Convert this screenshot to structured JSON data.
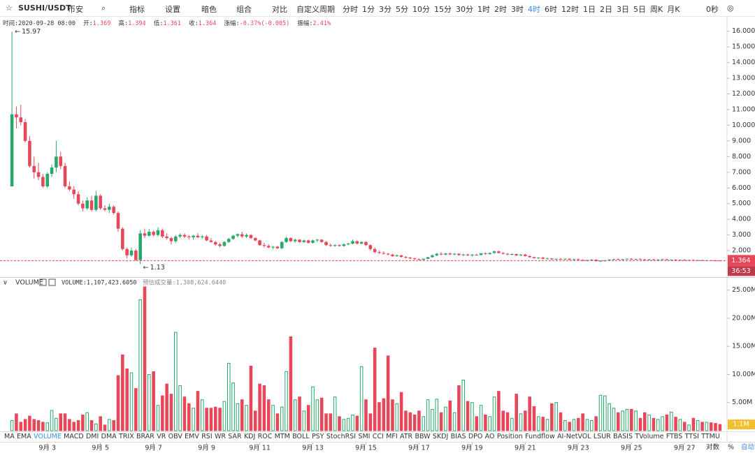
{
  "toolbar": {
    "symbol": "SUSHI/USDT",
    "exchange": "币安",
    "tools": [
      "指标",
      "设置",
      "暗色",
      "组合",
      "对比"
    ],
    "custom_period": "自定义周期",
    "periods": [
      "分时",
      "1分",
      "3分",
      "5分",
      "10分",
      "15分",
      "30分",
      "1时",
      "2时",
      "3时",
      "4时",
      "6时",
      "12时",
      "1日",
      "2日",
      "3日",
      "5日",
      "周K",
      "月K"
    ],
    "active_period_index": 10,
    "timer": "0秒"
  },
  "indicator_bar": {
    "items": [
      "MA",
      "EMA",
      "VOLUME",
      "MACD",
      "DMI",
      "DMA",
      "TRIX",
      "BRAR",
      "VR",
      "OBV",
      "EMV",
      "RSI",
      "WR",
      "SAR",
      "KDJ",
      "ROC",
      "MTM",
      "BOLL",
      "PSY",
      "StochRSI",
      "SMI",
      "CCI",
      "MFI",
      "ATR",
      "BBW",
      "SKDJ",
      "BIAS",
      "DPO",
      "AO",
      "Position",
      "Fundflow",
      "AI-NetVOL",
      "LSUR",
      "BASIS",
      "TVolume",
      "FTBS",
      "TTSI",
      "TTMU"
    ],
    "active_index": 2
  },
  "bottom_controls": {
    "log": "对数",
    "percent": "%",
    "auto": "自动"
  },
  "chart_data": {
    "type": "candlestick",
    "info": {
      "time_label": "时间:",
      "time": "2020-09-28 08:00",
      "open_label": "开:",
      "high_label": "高:",
      "low_label": "低:",
      "close_label": "收:",
      "change_label": "涨幅:",
      "change": "-0.37%(-0.005)",
      "amplitude_label": "振幅:",
      "amplitude": "2.41%"
    },
    "up_color": "#26a86a",
    "down_color": "#e8475a",
    "candles": [
      [
        6.1,
        15.97,
        6.1,
        10.7
      ],
      [
        10.7,
        11.2,
        9.8,
        10.5
      ],
      [
        10.5,
        11.3,
        10.0,
        10.2
      ],
      [
        10.2,
        10.4,
        8.9,
        9.0
      ],
      [
        9.0,
        9.3,
        7.3,
        7.4
      ],
      [
        7.4,
        8.0,
        6.6,
        7.0
      ],
      [
        7.0,
        7.6,
        6.5,
        6.7
      ],
      [
        6.7,
        6.9,
        6.0,
        6.1
      ],
      [
        6.1,
        7.0,
        6.0,
        6.9
      ],
      [
        6.9,
        7.5,
        6.7,
        7.3
      ],
      [
        7.3,
        9.0,
        7.0,
        8.0
      ],
      [
        8.0,
        8.3,
        7.2,
        7.4
      ],
      [
        7.4,
        7.6,
        6.0,
        6.1
      ],
      [
        6.1,
        6.4,
        5.8,
        5.9
      ],
      [
        5.9,
        6.1,
        5.3,
        5.6
      ],
      [
        5.6,
        5.8,
        4.9,
        5.0
      ],
      [
        5.0,
        5.2,
        4.5,
        4.7
      ],
      [
        4.7,
        5.4,
        4.6,
        5.2
      ],
      [
        5.2,
        5.5,
        4.5,
        4.6
      ],
      [
        4.6,
        5.8,
        4.5,
        5.5
      ],
      [
        5.5,
        5.6,
        4.6,
        4.7
      ],
      [
        4.7,
        4.9,
        4.5,
        4.6
      ],
      [
        4.6,
        5.0,
        4.4,
        4.8
      ],
      [
        4.8,
        4.9,
        4.3,
        4.4
      ],
      [
        4.4,
        4.5,
        3.2,
        3.4
      ],
      [
        3.4,
        3.5,
        2.0,
        2.1
      ],
      [
        2.1,
        2.2,
        1.5,
        1.7
      ],
      [
        1.7,
        2.2,
        1.6,
        2.0
      ],
      [
        2.0,
        2.1,
        1.35,
        1.4
      ],
      [
        1.4,
        3.3,
        1.13,
        3.1
      ],
      [
        3.1,
        3.4,
        2.8,
        2.95
      ],
      [
        2.95,
        3.4,
        2.9,
        3.2
      ],
      [
        3.2,
        3.3,
        2.9,
        3.0
      ],
      [
        3.0,
        3.5,
        2.9,
        3.3
      ],
      [
        3.3,
        3.4,
        2.8,
        2.9
      ],
      [
        2.9,
        3.1,
        2.7,
        2.8
      ],
      [
        2.8,
        2.9,
        2.4,
        2.6
      ],
      [
        2.6,
        3.0,
        2.5,
        2.9
      ],
      [
        2.9,
        3.1,
        2.8,
        3.0
      ],
      [
        3.0,
        3.1,
        2.8,
        2.9
      ],
      [
        2.9,
        3.0,
        2.7,
        2.85
      ],
      [
        2.85,
        3.0,
        2.7,
        2.95
      ],
      [
        2.95,
        3.1,
        2.8,
        2.85
      ],
      [
        2.85,
        3.0,
        2.75,
        2.9
      ],
      [
        2.9,
        3.0,
        2.6,
        2.65
      ],
      [
        2.65,
        2.8,
        2.5,
        2.55
      ],
      [
        2.55,
        2.6,
        2.3,
        2.4
      ],
      [
        2.4,
        2.5,
        2.2,
        2.3
      ],
      [
        2.3,
        2.6,
        2.25,
        2.55
      ],
      [
        2.55,
        2.8,
        2.5,
        2.75
      ],
      [
        2.75,
        3.0,
        2.7,
        2.95
      ],
      [
        2.95,
        3.1,
        2.85,
        3.05
      ],
      [
        3.05,
        3.2,
        2.8,
        2.9
      ],
      [
        2.9,
        3.1,
        2.8,
        3.0
      ],
      [
        3.0,
        3.05,
        2.75,
        2.8
      ],
      [
        2.8,
        2.85,
        2.6,
        2.65
      ],
      [
        2.65,
        2.7,
        2.3,
        2.35
      ],
      [
        2.35,
        2.5,
        2.2,
        2.3
      ],
      [
        2.3,
        2.4,
        2.15,
        2.2
      ],
      [
        2.2,
        2.3,
        2.1,
        2.25
      ],
      [
        2.25,
        2.3,
        2.1,
        2.15
      ],
      [
        2.15,
        2.6,
        2.1,
        2.55
      ],
      [
        2.55,
        2.9,
        2.5,
        2.8
      ],
      [
        2.8,
        2.85,
        2.55,
        2.6
      ],
      [
        2.6,
        2.75,
        2.5,
        2.7
      ],
      [
        2.7,
        2.72,
        2.5,
        2.55
      ],
      [
        2.55,
        2.7,
        2.5,
        2.65
      ],
      [
        2.65,
        2.7,
        2.45,
        2.5
      ],
      [
        2.5,
        2.7,
        2.45,
        2.65
      ],
      [
        2.65,
        2.75,
        2.55,
        2.7
      ],
      [
        2.7,
        2.72,
        2.5,
        2.55
      ],
      [
        2.55,
        2.6,
        2.3,
        2.35
      ],
      [
        2.35,
        2.45,
        2.25,
        2.3
      ],
      [
        2.3,
        2.4,
        2.25,
        2.35
      ],
      [
        2.35,
        2.4,
        2.25,
        2.3
      ],
      [
        2.3,
        2.45,
        2.25,
        2.4
      ],
      [
        2.4,
        2.5,
        2.35,
        2.45
      ],
      [
        2.45,
        2.7,
        2.4,
        2.6
      ],
      [
        2.6,
        2.65,
        2.4,
        2.45
      ],
      [
        2.45,
        2.6,
        2.4,
        2.55
      ],
      [
        2.55,
        2.6,
        2.3,
        2.35
      ],
      [
        2.35,
        2.4,
        2.0,
        2.1
      ],
      [
        2.1,
        2.2,
        1.85,
        1.9
      ],
      [
        1.9,
        2.0,
        1.8,
        1.85
      ],
      [
        1.85,
        1.95,
        1.75,
        1.8
      ],
      [
        1.8,
        1.85,
        1.7,
        1.75
      ],
      [
        1.75,
        1.8,
        1.6,
        1.65
      ],
      [
        1.65,
        1.75,
        1.6,
        1.7
      ],
      [
        1.7,
        1.72,
        1.55,
        1.6
      ],
      [
        1.6,
        1.65,
        1.5,
        1.55
      ],
      [
        1.55,
        1.6,
        1.45,
        1.5
      ],
      [
        1.5,
        1.55,
        1.4,
        1.45
      ],
      [
        1.45,
        1.5,
        1.38,
        1.42
      ],
      [
        1.42,
        1.5,
        1.38,
        1.48
      ],
      [
        1.48,
        1.6,
        1.45,
        1.58
      ],
      [
        1.58,
        1.75,
        1.55,
        1.7
      ],
      [
        1.7,
        1.85,
        1.65,
        1.8
      ],
      [
        1.8,
        1.9,
        1.7,
        1.75
      ],
      [
        1.75,
        1.85,
        1.7,
        1.82
      ],
      [
        1.82,
        1.88,
        1.72,
        1.76
      ],
      [
        1.76,
        1.85,
        1.7,
        1.8
      ],
      [
        1.8,
        1.83,
        1.68,
        1.72
      ],
      [
        1.72,
        1.8,
        1.65,
        1.75
      ],
      [
        1.75,
        1.8,
        1.65,
        1.7
      ],
      [
        1.7,
        1.78,
        1.62,
        1.74
      ],
      [
        1.74,
        1.8,
        1.68,
        1.72
      ],
      [
        1.72,
        1.85,
        1.7,
        1.82
      ],
      [
        1.82,
        1.9,
        1.75,
        1.78
      ],
      [
        1.78,
        1.88,
        1.75,
        1.85
      ],
      [
        1.85,
        2.0,
        1.8,
        1.95
      ],
      [
        1.95,
        2.0,
        1.82,
        1.85
      ],
      [
        1.85,
        1.9,
        1.75,
        1.8
      ],
      [
        1.8,
        1.85,
        1.7,
        1.75
      ],
      [
        1.75,
        1.82,
        1.7,
        1.78
      ],
      [
        1.78,
        1.8,
        1.65,
        1.7
      ],
      [
        1.7,
        1.78,
        1.65,
        1.75
      ],
      [
        1.75,
        1.8,
        1.62,
        1.65
      ],
      [
        1.65,
        1.7,
        1.55,
        1.58
      ],
      [
        1.58,
        1.62,
        1.5,
        1.52
      ],
      [
        1.52,
        1.58,
        1.48,
        1.55
      ],
      [
        1.55,
        1.6,
        1.45,
        1.48
      ],
      [
        1.48,
        1.55,
        1.44,
        1.5
      ],
      [
        1.5,
        1.52,
        1.4,
        1.44
      ],
      [
        1.44,
        1.5,
        1.4,
        1.47
      ],
      [
        1.47,
        1.52,
        1.42,
        1.45
      ],
      [
        1.45,
        1.5,
        1.4,
        1.48
      ],
      [
        1.48,
        1.5,
        1.38,
        1.42
      ],
      [
        1.42,
        1.48,
        1.38,
        1.45
      ],
      [
        1.45,
        1.5,
        1.36,
        1.4
      ],
      [
        1.4,
        1.45,
        1.32,
        1.35
      ],
      [
        1.35,
        1.42,
        1.32,
        1.4
      ],
      [
        1.4,
        1.45,
        1.35,
        1.42
      ],
      [
        1.42,
        1.45,
        1.3,
        1.33
      ],
      [
        1.33,
        1.38,
        1.28,
        1.35
      ],
      [
        1.35,
        1.4,
        1.3,
        1.38
      ],
      [
        1.38,
        1.45,
        1.35,
        1.43
      ],
      [
        1.43,
        1.48,
        1.38,
        1.46
      ],
      [
        1.46,
        1.5,
        1.4,
        1.42
      ],
      [
        1.42,
        1.48,
        1.38,
        1.45
      ],
      [
        1.45,
        1.5,
        1.42,
        1.48
      ],
      [
        1.48,
        1.52,
        1.4,
        1.43
      ],
      [
        1.43,
        1.48,
        1.4,
        1.46
      ],
      [
        1.46,
        1.5,
        1.42,
        1.44
      ],
      [
        1.44,
        1.48,
        1.38,
        1.41
      ],
      [
        1.41,
        1.46,
        1.38,
        1.44
      ],
      [
        1.44,
        1.47,
        1.38,
        1.4
      ],
      [
        1.4,
        1.45,
        1.37,
        1.43
      ],
      [
        1.43,
        1.48,
        1.4,
        1.45
      ],
      [
        1.45,
        1.48,
        1.38,
        1.4
      ],
      [
        1.4,
        1.44,
        1.36,
        1.42
      ],
      [
        1.42,
        1.46,
        1.38,
        1.39
      ],
      [
        1.39,
        1.43,
        1.35,
        1.41
      ],
      [
        1.41,
        1.45,
        1.37,
        1.38
      ],
      [
        1.38,
        1.42,
        1.34,
        1.4
      ],
      [
        1.4,
        1.44,
        1.36,
        1.37
      ],
      [
        1.37,
        1.41,
        1.33,
        1.39
      ],
      [
        1.39,
        1.42,
        1.35,
        1.36
      ],
      [
        1.36,
        1.4,
        1.33,
        1.38
      ],
      [
        1.38,
        1.41,
        1.35,
        1.37
      ],
      [
        1.37,
        1.4,
        1.34,
        1.369
      ],
      [
        1.369,
        1.394,
        1.361,
        1.364
      ]
    ],
    "volume": [
      1.8,
      3.0,
      1.5,
      2.0,
      2.6,
      2.0,
      1.8,
      1.5,
      1.4,
      3.6,
      2.2,
      3.0,
      3.0,
      2.0,
      1.5,
      1.8,
      2.8,
      3.2,
      1.8,
      1.2,
      2.5,
      1.0,
      2.0,
      1.8,
      9.8,
      13.5,
      11.0,
      10.3,
      7.5,
      23.3,
      25.6,
      10.0,
      10.5,
      4.5,
      6.2,
      8.3,
      6.5,
      17.5,
      8.0,
      6.0,
      4.8,
      4.0,
      7.0,
      5.5,
      4.0,
      4.0,
      4.2,
      4.0,
      5.2,
      12.0,
      8.5,
      4.8,
      5.5,
      4.5,
      11.5,
      3.5,
      8.3,
      8.0,
      5.5,
      4.5,
      3.0,
      4.2,
      10.5,
      16.7,
      5.5,
      6.0,
      3.5,
      4.5,
      7.8,
      5.5,
      5.8,
      3.0,
      3.0,
      6.0,
      2.5,
      2.0,
      2.2,
      2.8,
      2.6,
      11.4,
      5.5,
      3.0,
      14.7,
      5.0,
      5.7,
      13.3,
      5.5,
      4.8,
      6.8,
      3.5,
      3.2,
      2.8,
      3.5,
      2.5,
      5.5,
      3.8,
      5.6,
      3.2,
      4.2,
      5.3,
      3.2,
      8.0,
      9.0,
      5.2,
      5.0,
      2.5,
      4.5,
      2.8,
      2.5,
      6.0,
      7.0,
      3.5,
      3.2,
      2.2,
      6.5,
      3.0,
      3.5,
      6.0,
      4.3,
      2.5,
      2.4,
      2.0,
      4.8,
      5.0,
      3.2,
      1.8,
      1.5,
      2.0,
      2.2,
      3.0,
      2.0,
      1.8,
      2.5,
      6.3,
      6.2,
      4.8,
      4.0,
      3.2,
      3.5,
      3.8,
      3.8,
      3.5,
      2.2,
      3.2,
      2.8,
      2.2,
      2.0,
      2.5,
      2.8,
      3.3,
      2.4,
      2.0,
      1.5,
      1.0,
      2.2,
      1.8,
      1.5,
      1.5,
      1.4,
      1.3,
      1.1074236
    ],
    "last_volume_label": "1.1M",
    "volume_header": {
      "name": "VOLUME",
      "value": "VOLUME:1,107,423.6050",
      "estimate": "预估成交量:1,308,624.6440"
    },
    "high_marker": 15.97,
    "low_marker": 1.13,
    "countdown": "36:53",
    "xlim": [
      -2.7,
      161.6
    ],
    "xticks": [
      {
        "value": 8,
        "label": "9月 3"
      },
      {
        "value": 20,
        "label": "9月 5"
      },
      {
        "value": 32,
        "label": "9月 7"
      },
      {
        "value": 44,
        "label": "9月 9"
      },
      {
        "value": 56,
        "label": "9月 11"
      },
      {
        "value": 68,
        "label": "9月 13"
      },
      {
        "value": 80,
        "label": "9月 15"
      },
      {
        "value": 92,
        "label": "9月 17"
      },
      {
        "value": 104,
        "label": "9月 19"
      },
      {
        "value": 116,
        "label": "9月 21"
      },
      {
        "value": 128,
        "label": "9月 23"
      },
      {
        "value": 140,
        "label": "9月 25"
      },
      {
        "value": 152,
        "label": "9月 27"
      }
    ],
    "ylim": [
      0.31,
      16.3
    ],
    "yticks": [
      {
        "value": 2,
        "label": "2.000"
      },
      {
        "value": 3,
        "label": "3.000"
      },
      {
        "value": 4,
        "label": "4.000"
      },
      {
        "value": 5,
        "label": "5.000"
      },
      {
        "value": 6,
        "label": "6.000"
      },
      {
        "value": 7,
        "label": "7.000"
      },
      {
        "value": 8,
        "label": "8.000"
      },
      {
        "value": 9,
        "label": "9.000"
      },
      {
        "value": 10,
        "label": "10.000"
      },
      {
        "value": 11,
        "label": "11.000"
      },
      {
        "value": 12,
        "label": "12.000"
      },
      {
        "value": 13,
        "label": "13.000"
      },
      {
        "value": 14,
        "label": "14.000"
      },
      {
        "value": 15,
        "label": "15.000"
      },
      {
        "value": 16,
        "label": "16.000"
      }
    ],
    "volume_ylim": [
      0,
      26.33
    ],
    "volume_yticks": [
      {
        "value": 5,
        "label": "5.00M"
      },
      {
        "value": 10,
        "label": "10.00M"
      },
      {
        "value": 15,
        "label": "15.00M"
      },
      {
        "value": 20,
        "label": "20.00M"
      },
      {
        "value": 25,
        "label": "25.00M"
      }
    ]
  }
}
